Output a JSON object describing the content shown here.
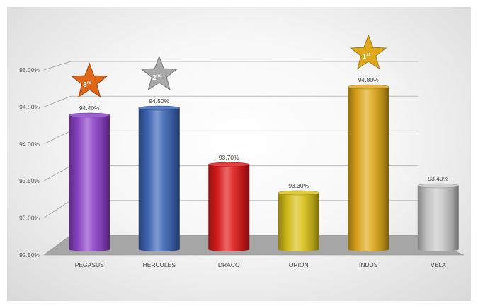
{
  "chart_data": {
    "type": "bar",
    "title": "",
    "xlabel": "",
    "ylabel": "",
    "categories": [
      "PEGASUS",
      "HERCULES",
      "DRACO",
      "ORION",
      "INDUS",
      "VELA"
    ],
    "values": [
      94.4,
      94.5,
      93.7,
      93.3,
      94.8,
      93.4
    ],
    "data_labels": [
      "94.40%",
      "94.50%",
      "93.70%",
      "93.30%",
      "94.80%",
      "93.40%"
    ],
    "ylim": [
      92.5,
      95.0
    ],
    "yticks": [
      92.5,
      93.0,
      93.5,
      94.0,
      94.5,
      95.0
    ],
    "ytick_labels": [
      "92.50%",
      "93.00%",
      "93.50%",
      "94.00%",
      "94.50%",
      "95.00%"
    ],
    "grid": true,
    "legend": "none",
    "bar_colors": [
      "#8e44c9",
      "#3f67b8",
      "#e01c1c",
      "#d9c21a",
      "#e0a91c",
      "#c9c9c9"
    ],
    "rank_badges": [
      {
        "category": "INDUS",
        "rank": "1",
        "suffix": "st",
        "color": "#e0a91c"
      },
      {
        "category": "HERCULES",
        "rank": "2",
        "suffix": "nd",
        "color": "#a8a8a8"
      },
      {
        "category": "PEGASUS",
        "rank": "3",
        "suffix": "rd",
        "color": "#e0661a"
      }
    ]
  }
}
